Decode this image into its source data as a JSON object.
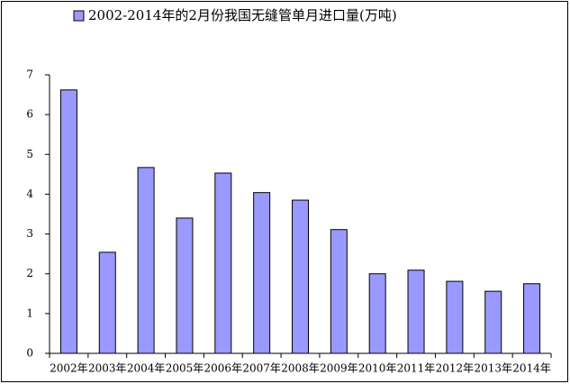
{
  "chart_data": {
    "type": "bar",
    "categories": [
      "2002年",
      "2003年",
      "2004年",
      "2005年",
      "2006年",
      "2007年",
      "2008年",
      "2009年",
      "2010年",
      "2011年",
      "2012年",
      "2013年",
      "2014年"
    ],
    "series": [
      {
        "name": "2002-2014年的2月份我国无缝管单月进口量(万吨)",
        "color": "#9999ff",
        "values": [
          6.62,
          2.54,
          4.67,
          3.4,
          4.53,
          4.04,
          3.85,
          3.11,
          2.0,
          2.09,
          1.81,
          1.56,
          1.75
        ]
      }
    ],
    "ylim": [
      0,
      7
    ],
    "yticks": [
      0,
      1,
      2,
      3,
      4,
      5,
      6,
      7
    ],
    "grid": false,
    "legend": "top"
  }
}
